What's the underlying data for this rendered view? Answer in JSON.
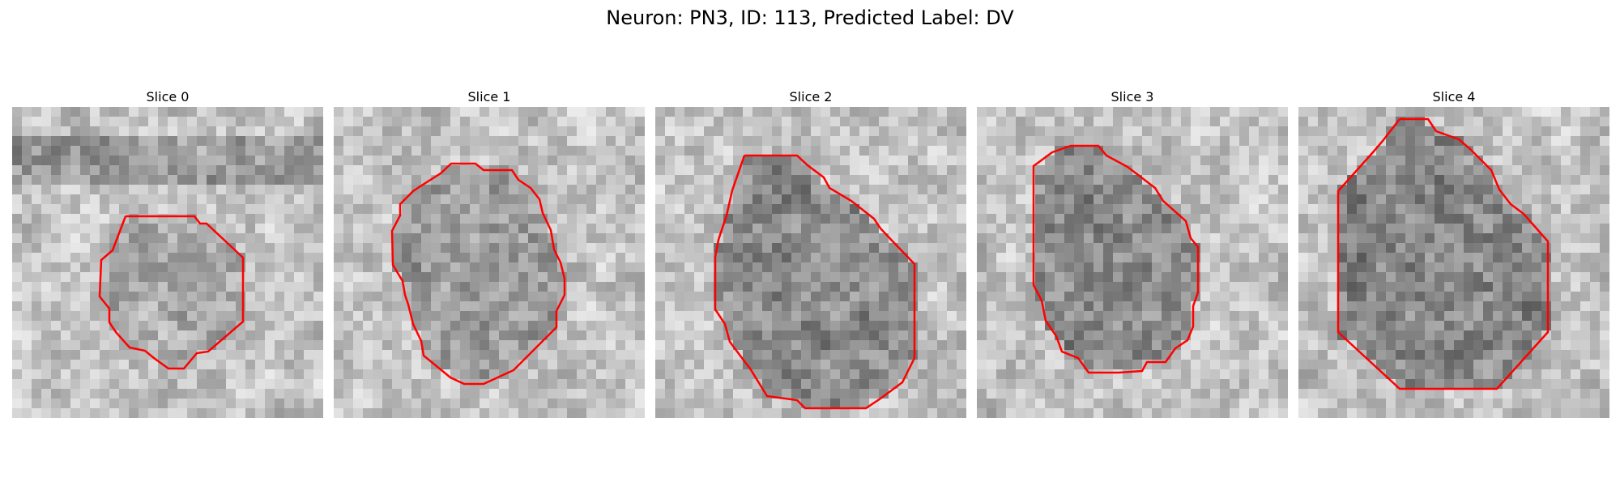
{
  "figure": {
    "title": "Neuron: PN3, ID: 113, Predicted Label: DV"
  },
  "panels": [
    {
      "title": "Slice 0"
    },
    {
      "title": "Slice 1"
    },
    {
      "title": "Slice 2"
    },
    {
      "title": "Slice 3"
    },
    {
      "title": "Slice 4"
    }
  ],
  "style": {
    "contour_color": "#ff0000",
    "colormap": "grayscale"
  }
}
